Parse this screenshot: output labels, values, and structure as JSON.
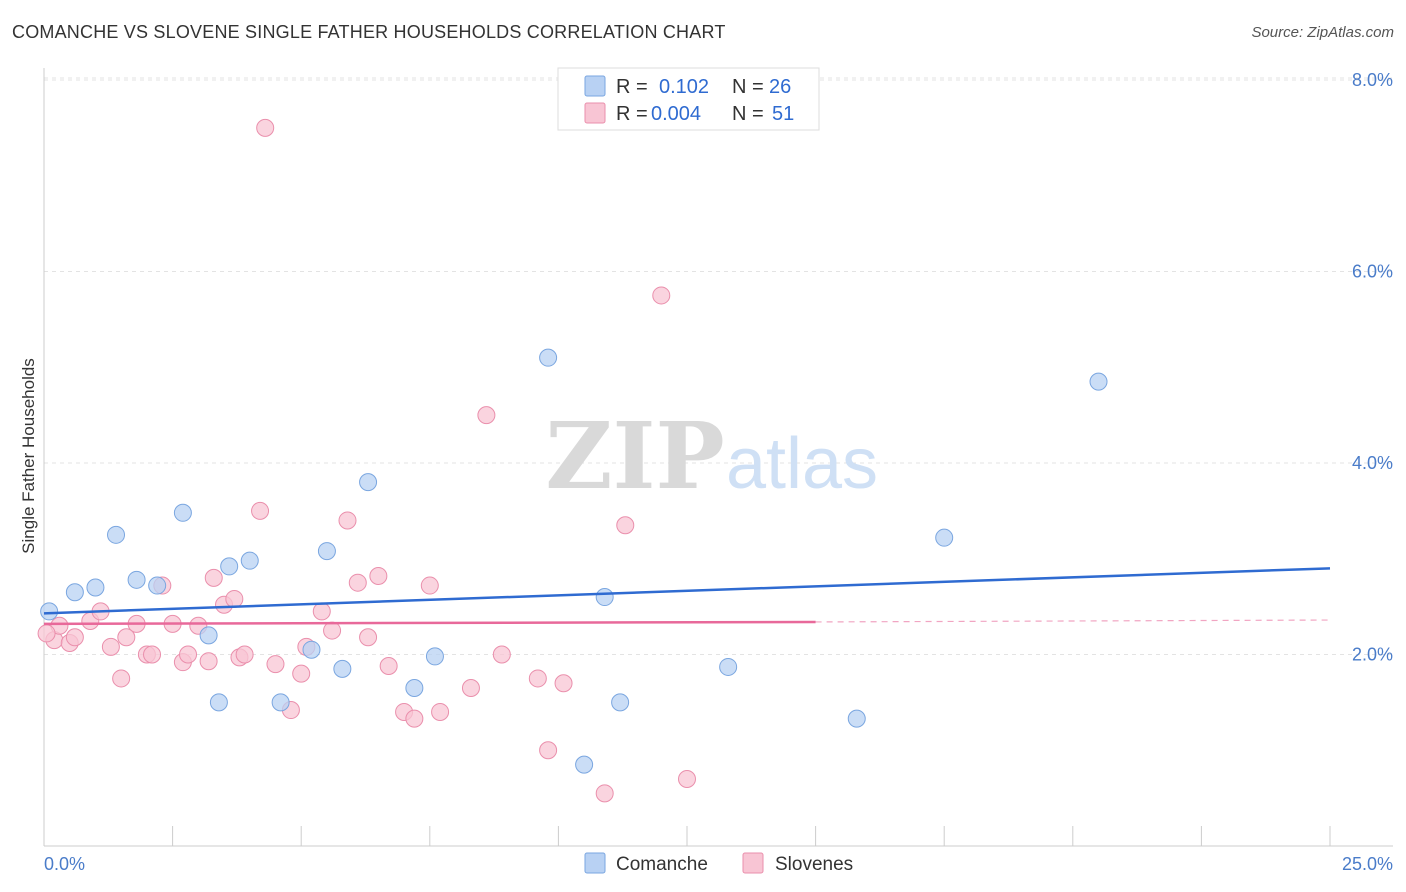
{
  "chart_data": {
    "type": "scatter",
    "title": "COMANCHE VS SLOVENE SINGLE FATHER HOUSEHOLDS CORRELATION CHART",
    "source": "Source: ZipAtlas.com",
    "xlabel": "",
    "ylabel": "Single Father Households",
    "xlim": [
      0,
      25
    ],
    "ylim": [
      0,
      8.3
    ],
    "x_tick_labels": [
      "0.0%",
      "25.0%"
    ],
    "y_ticks": [
      2,
      4,
      6,
      8
    ],
    "y_tick_labels": [
      "2.0%",
      "4.0%",
      "6.0%",
      "8.0%"
    ],
    "watermark": {
      "zip": "ZIP",
      "atlas": "atlas"
    },
    "legend": {
      "r_label": "R =",
      "n_label": "N =",
      "entries": [
        {
          "r": "0.102",
          "n": "26"
        },
        {
          "r": "0.004",
          "n": "51"
        }
      ]
    },
    "colors": {
      "comanche_fill": "#b8d1f3",
      "comanche_stroke": "#7aa6e0",
      "comanche_line": "#2f6bd1",
      "slovene_fill": "#f8c5d4",
      "slovene_stroke": "#ea8fac",
      "slovene_line": "#e8699a"
    },
    "series": [
      {
        "name": "Comanche",
        "trend": {
          "x0": 0,
          "y0": 2.43,
          "x1": 25,
          "y1": 2.9
        },
        "points": [
          [
            0.1,
            2.45
          ],
          [
            0.6,
            2.65
          ],
          [
            1.0,
            2.7
          ],
          [
            1.4,
            3.25
          ],
          [
            1.8,
            2.78
          ],
          [
            2.2,
            2.72
          ],
          [
            2.7,
            3.48
          ],
          [
            3.2,
            2.2
          ],
          [
            3.4,
            1.5
          ],
          [
            3.6,
            2.92
          ],
          [
            4.0,
            2.98
          ],
          [
            4.6,
            1.5
          ],
          [
            5.2,
            2.05
          ],
          [
            5.5,
            3.08
          ],
          [
            5.8,
            1.85
          ],
          [
            6.3,
            3.8
          ],
          [
            7.2,
            1.65
          ],
          [
            7.6,
            1.98
          ],
          [
            9.8,
            5.1
          ],
          [
            10.5,
            0.85
          ],
          [
            10.9,
            2.6
          ],
          [
            11.2,
            1.5
          ],
          [
            13.3,
            1.87
          ],
          [
            15.8,
            1.33
          ],
          [
            17.5,
            3.22
          ],
          [
            20.5,
            4.85
          ]
        ]
      },
      {
        "name": "Slovenes",
        "trend": {
          "x0": 0,
          "y0": 2.32,
          "x1": 15,
          "y1": 2.34,
          "x2": 25,
          "y2": 2.36
        },
        "points": [
          [
            0.2,
            2.15
          ],
          [
            0.3,
            2.3
          ],
          [
            0.5,
            2.12
          ],
          [
            0.6,
            2.18
          ],
          [
            0.9,
            2.35
          ],
          [
            1.1,
            2.45
          ],
          [
            1.3,
            2.08
          ],
          [
            1.5,
            1.75
          ],
          [
            1.6,
            2.18
          ],
          [
            1.8,
            2.32
          ],
          [
            2.0,
            2.0
          ],
          [
            2.1,
            2.0
          ],
          [
            2.3,
            2.72
          ],
          [
            2.5,
            2.32
          ],
          [
            2.7,
            1.92
          ],
          [
            2.8,
            2.0
          ],
          [
            3.0,
            2.3
          ],
          [
            3.2,
            1.93
          ],
          [
            3.3,
            2.8
          ],
          [
            3.5,
            2.52
          ],
          [
            3.7,
            2.58
          ],
          [
            3.8,
            1.97
          ],
          [
            3.9,
            2.0
          ],
          [
            4.2,
            3.5
          ],
          [
            4.3,
            7.5
          ],
          [
            4.5,
            1.9
          ],
          [
            4.8,
            1.42
          ],
          [
            5.0,
            1.8
          ],
          [
            5.1,
            2.08
          ],
          [
            5.4,
            2.45
          ],
          [
            5.6,
            2.25
          ],
          [
            5.9,
            3.4
          ],
          [
            6.1,
            2.75
          ],
          [
            6.3,
            2.18
          ],
          [
            6.5,
            2.82
          ],
          [
            6.7,
            1.88
          ],
          [
            7.0,
            1.4
          ],
          [
            7.2,
            1.33
          ],
          [
            7.5,
            2.72
          ],
          [
            7.7,
            1.4
          ],
          [
            8.3,
            1.65
          ],
          [
            8.6,
            4.5
          ],
          [
            8.9,
            2.0
          ],
          [
            9.6,
            1.75
          ],
          [
            9.8,
            1.0
          ],
          [
            10.1,
            1.7
          ],
          [
            10.9,
            0.55
          ],
          [
            11.3,
            3.35
          ],
          [
            12.0,
            5.75
          ],
          [
            12.5,
            0.7
          ],
          [
            0.05,
            2.22
          ]
        ]
      }
    ],
    "bottom_legend": [
      "Comanche",
      "Slovenes"
    ]
  }
}
